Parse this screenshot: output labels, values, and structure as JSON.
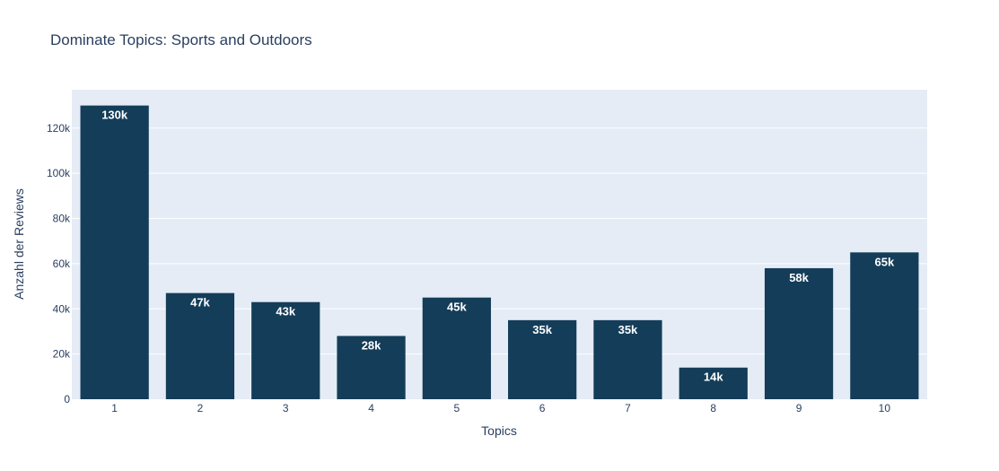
{
  "chart_data": {
    "type": "bar",
    "title": "Dominate Topics: Sports and Outdoors",
    "xlabel": "Topics",
    "ylabel": "Anzahl der Reviews",
    "categories": [
      "1",
      "2",
      "3",
      "4",
      "5",
      "6",
      "7",
      "8",
      "9",
      "10"
    ],
    "values": [
      130000,
      47000,
      43000,
      28000,
      45000,
      35000,
      35000,
      14000,
      58000,
      65000
    ],
    "data_labels": [
      "130k",
      "47k",
      "43k",
      "28k",
      "45k",
      "35k",
      "35k",
      "14k",
      "58k",
      "65k"
    ],
    "ylim": [
      0,
      137000
    ],
    "yticks": [
      0,
      20000,
      40000,
      60000,
      80000,
      100000,
      120000
    ],
    "ytick_labels": [
      "0",
      "20k",
      "40k",
      "60k",
      "80k",
      "100k",
      "120k"
    ],
    "grid": true,
    "colors": {
      "bar": "#143d59",
      "plot_bg": "#e5ecf6",
      "grid": "#ffffff",
      "text": "#2a3f5f",
      "label_text": "#ffffff"
    }
  }
}
